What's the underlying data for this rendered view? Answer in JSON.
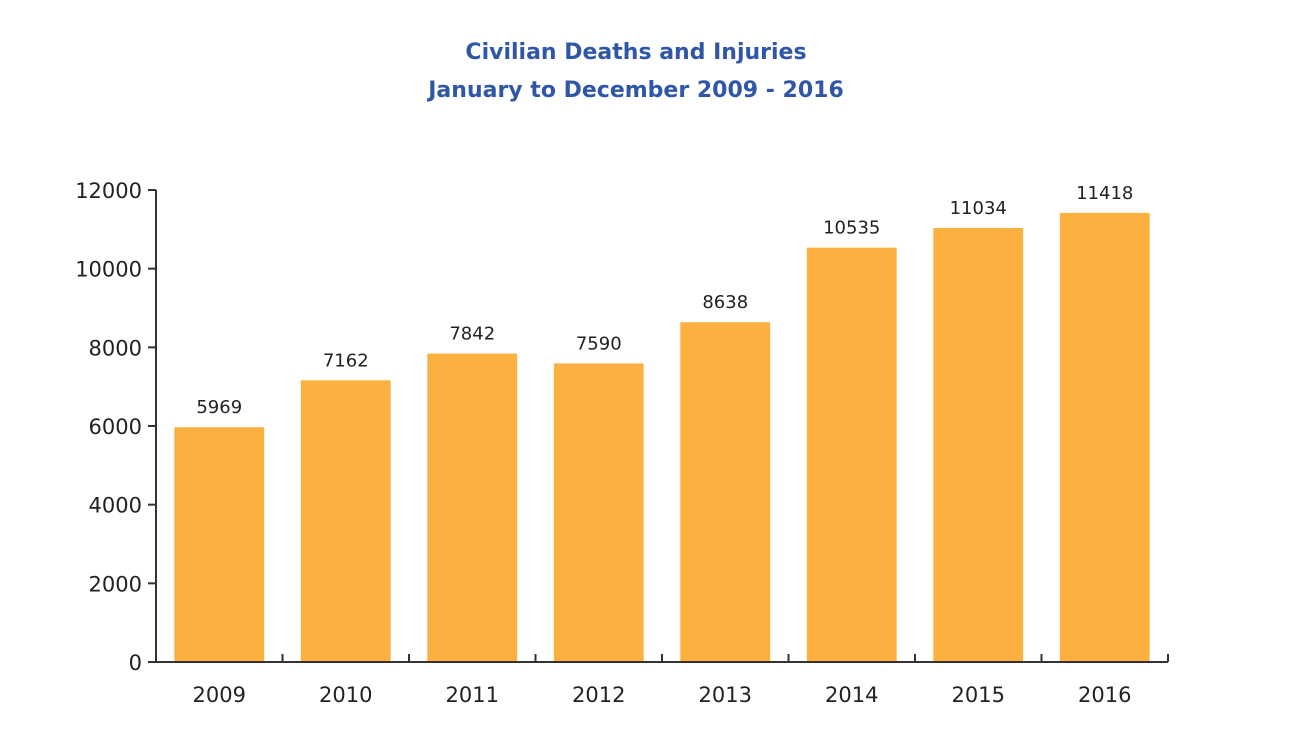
{
  "chart_data": {
    "type": "bar",
    "title": "Civilian Deaths and Injuries",
    "subtitle": "January to December 2009 - 2016",
    "xlabel": "",
    "ylabel": "",
    "categories": [
      "2009",
      "2010",
      "2011",
      "2012",
      "2013",
      "2014",
      "2015",
      "2016"
    ],
    "values": [
      5969,
      7162,
      7842,
      7590,
      8638,
      10535,
      11034,
      11418
    ],
    "data_labels": [
      "5969",
      "7162",
      "7842",
      "7590",
      "8638",
      "10535",
      "11034",
      "11418"
    ],
    "ylim": [
      0,
      12000
    ],
    "yticks": [
      0,
      2000,
      4000,
      6000,
      8000,
      10000,
      12000
    ],
    "ytick_labels": [
      "0",
      "2000",
      "4000",
      "6000",
      "8000",
      "10000",
      "12000"
    ],
    "grid": false,
    "legend": "none",
    "colors": {
      "bar": "#fbb040",
      "title": "#2f57a6",
      "axis": "#333333",
      "text": "#222222"
    }
  }
}
